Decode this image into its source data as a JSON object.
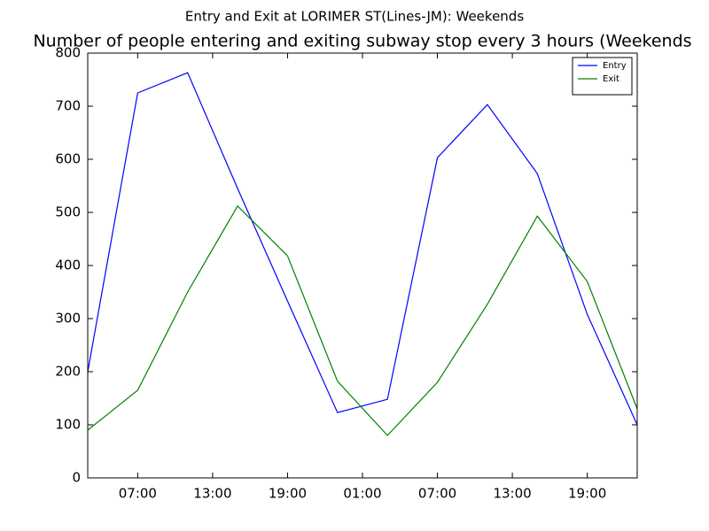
{
  "chart_data": {
    "type": "line",
    "suptitle": "Entry and Exit at LORIMER ST(Lines-JM): Weekends",
    "title": "Number of people entering and exiting subway stop every 3 hours (Weekends",
    "x": [
      3,
      7,
      11,
      15,
      19,
      23,
      27,
      31,
      35,
      39,
      43,
      47
    ],
    "series": [
      {
        "name": "Entry",
        "color": "#0000ff",
        "values": [
          200,
          725,
          763,
          545,
          333,
          123,
          148,
          603,
          703,
          573,
          308,
          100
        ]
      },
      {
        "name": "Exit",
        "color": "#008000",
        "values": [
          90,
          165,
          350,
          512,
          418,
          182,
          80,
          180,
          327,
          493,
          370,
          130
        ]
      }
    ],
    "xlim": [
      3,
      47
    ],
    "xticks": [
      {
        "value": 7,
        "label": "07:00"
      },
      {
        "value": 13,
        "label": "13:00"
      },
      {
        "value": 19,
        "label": "19:00"
      },
      {
        "value": 25,
        "label": "01:00"
      },
      {
        "value": 31,
        "label": "07:00"
      },
      {
        "value": 37,
        "label": "13:00"
      },
      {
        "value": 43,
        "label": "19:00"
      }
    ],
    "ylim": [
      0,
      800
    ],
    "yticks": [
      0,
      100,
      200,
      300,
      400,
      500,
      600,
      700,
      800
    ],
    "legend": "upper right"
  }
}
